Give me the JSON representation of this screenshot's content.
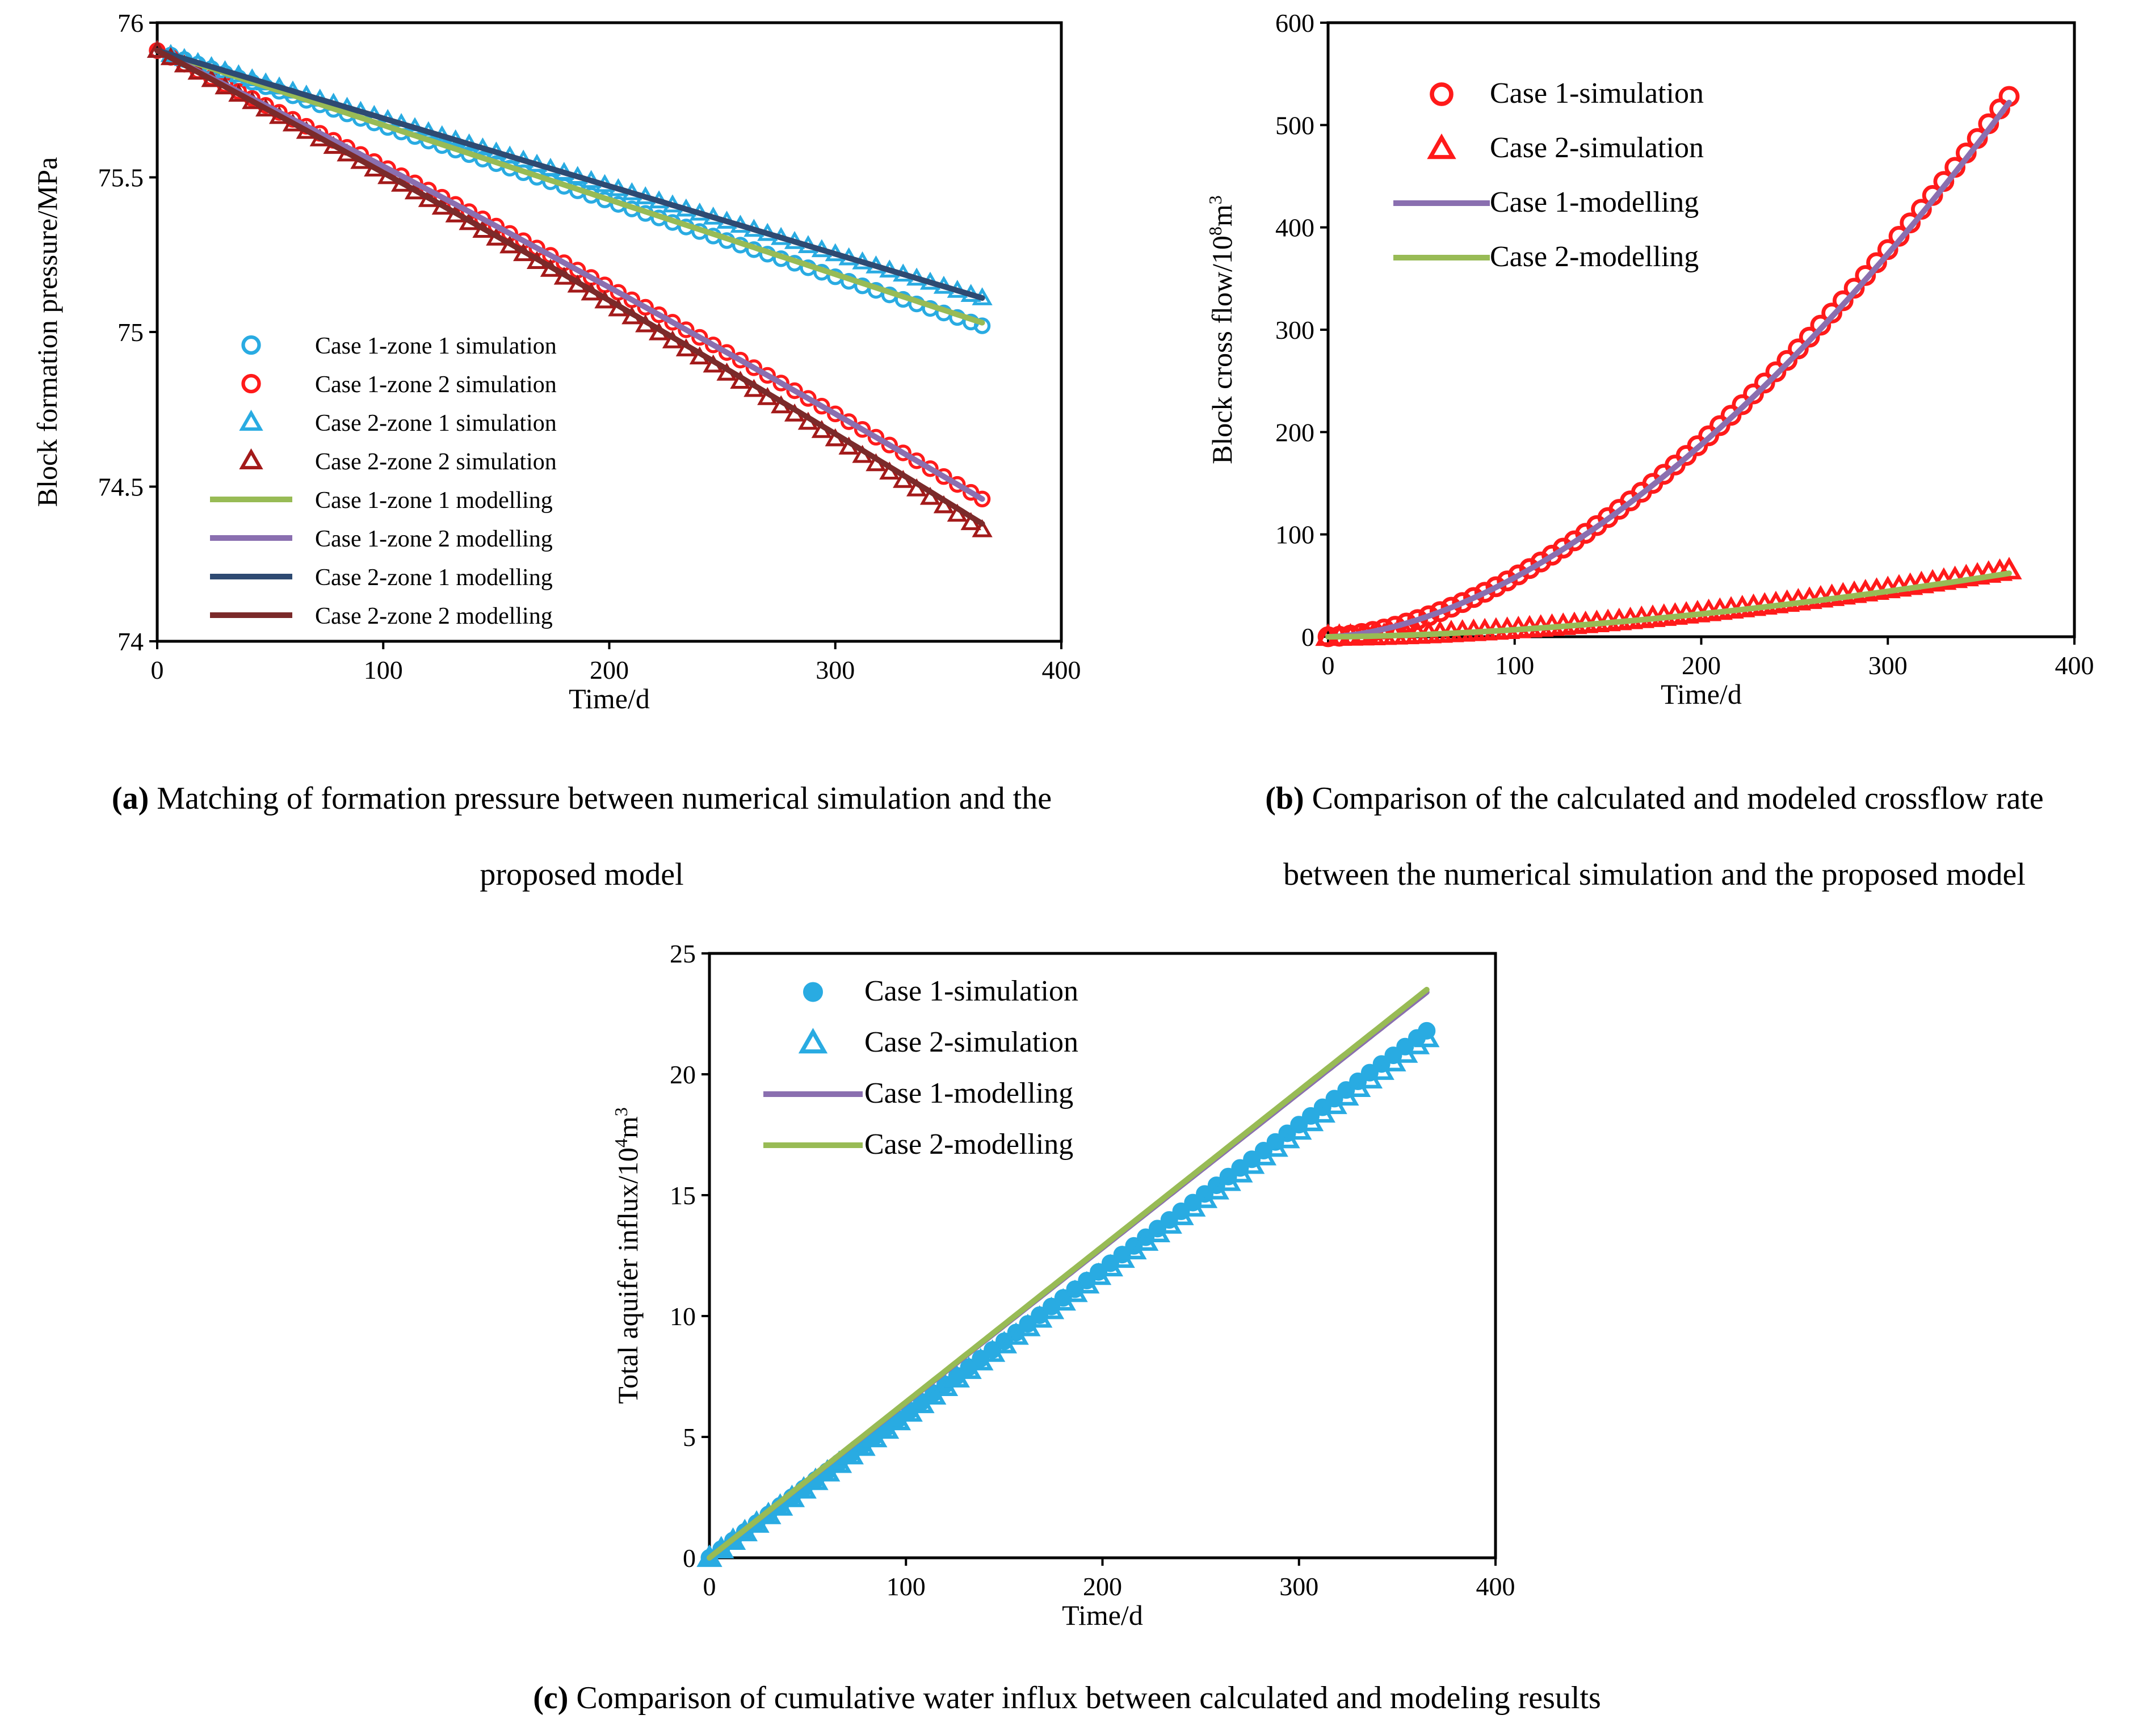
{
  "figure_captions": {
    "a": {
      "tag": "(a)",
      "line1": " Matching of formation pressure between numerical simulation and the",
      "line2": "proposed model"
    },
    "b": {
      "tag": "(b)",
      "line1": " Comparison of the calculated and modeled crossflow rate",
      "line2": "between the numerical simulation and the proposed model"
    },
    "c": {
      "tag": "(c)",
      "line1": " Comparison of cumulative water influx between calculated and modeling results"
    }
  },
  "colors": {
    "light_blue": "#29abe2",
    "red": "#ff1a1a",
    "dark_red": "#a31a1a",
    "olive_green": "#98bb55",
    "purple": "#8a6fb0",
    "navy": "#2e4a72",
    "maroon": "#7b2a2a",
    "case1_sim_c": "#29abe2"
  },
  "chart_data": [
    {
      "id": "a",
      "type": "line",
      "title": "",
      "xlabel": "Time/d",
      "ylabel": "Block formation pressure/MPa",
      "xlim": [
        0,
        400
      ],
      "ylim": [
        74,
        76
      ],
      "xticks": [
        "0",
        "100",
        "200",
        "300",
        "400"
      ],
      "yticks": [
        "74",
        "74.5",
        "75",
        "75.5",
        "76"
      ],
      "grid": false,
      "legend_position": "lower-left",
      "series": [
        {
          "name": "Case 1-zone 1 simulation",
          "marker": "circle-open",
          "color": "light_blue",
          "x_start": 0,
          "x_end": 365,
          "x_step": 6,
          "y_start": 75.91,
          "y_end": 75.02,
          "shape": "linear"
        },
        {
          "name": "Case 1-zone 2 simulation",
          "marker": "circle-open",
          "color": "red",
          "x_start": 0,
          "x_end": 365,
          "x_step": 6,
          "y_start": 75.91,
          "y_end": 74.46,
          "shape": "slight-convex"
        },
        {
          "name": "Case 2-zone 1 simulation",
          "marker": "triangle-open",
          "color": "light_blue",
          "x_start": 0,
          "x_end": 365,
          "x_step": 6,
          "y_start": 75.91,
          "y_end": 75.11,
          "shape": "linear"
        },
        {
          "name": "Case 2-zone 2 simulation",
          "marker": "triangle-open",
          "color": "dark_red",
          "x_start": 0,
          "x_end": 365,
          "x_step": 6,
          "y_start": 75.91,
          "y_end": 74.36,
          "shape": "slight-convex"
        },
        {
          "name": "Case 1-zone 1 modelling",
          "marker": "line",
          "color": "olive_green",
          "x_start": 0,
          "x_end": 365,
          "y_start": 75.91,
          "y_end": 75.03,
          "shape": "linear"
        },
        {
          "name": "Case 1-zone 2 modelling",
          "marker": "line",
          "color": "purple",
          "x_start": 0,
          "x_end": 365,
          "y_start": 75.91,
          "y_end": 74.46,
          "shape": "slight-convex"
        },
        {
          "name": "Case 2-zone 1 modelling",
          "marker": "line",
          "color": "navy",
          "x_start": 0,
          "x_end": 365,
          "y_start": 75.91,
          "y_end": 75.11,
          "shape": "linear"
        },
        {
          "name": "Case 2-zone 2 modelling",
          "marker": "line",
          "color": "maroon",
          "x_start": 0,
          "x_end": 365,
          "y_start": 75.91,
          "y_end": 74.38,
          "shape": "slight-convex"
        }
      ]
    },
    {
      "id": "b",
      "type": "line",
      "title": "",
      "xlabel": "Time/d",
      "ylabel": "Block cross flow/10",
      "ylabel_sup": "8",
      "ylabel_unit": "m",
      "ylabel_unit_sup": "3",
      "xlim": [
        0,
        400
      ],
      "ylim": [
        0,
        600
      ],
      "xticks": [
        "0",
        "100",
        "200",
        "300",
        "400"
      ],
      "yticks": [
        "0",
        "100",
        "200",
        "300",
        "400",
        "500",
        "600"
      ],
      "grid": false,
      "legend_position": "top-left",
      "series": [
        {
          "name": "Case 1-simulation",
          "marker": "circle-open",
          "color": "red",
          "x_start": 0,
          "x_end": 365,
          "x_step": 6,
          "y_end": 528,
          "power": 1.7
        },
        {
          "name": "Case 2-simulation",
          "marker": "triangle-open",
          "color": "red",
          "x_start": 0,
          "x_end": 365,
          "x_step": 6,
          "y_end": 65,
          "power": 1.7
        },
        {
          "name": "Case 1-modelling",
          "marker": "line",
          "color": "purple",
          "x_start": 0,
          "x_end": 365,
          "y_end": 522,
          "power": 1.7
        },
        {
          "name": "Case 2-modelling",
          "marker": "line",
          "color": "olive_green",
          "x_start": 0,
          "x_end": 365,
          "y_end": 62,
          "power": 1.7
        }
      ]
    },
    {
      "id": "c",
      "type": "line",
      "title": "",
      "xlabel": "Time/d",
      "ylabel": "Total aquifer influx/10",
      "ylabel_sup": "4",
      "ylabel_unit": "m",
      "ylabel_unit_sup": "3",
      "xlim": [
        0,
        400
      ],
      "ylim": [
        0,
        25
      ],
      "xticks": [
        "0",
        "100",
        "200",
        "300",
        "400"
      ],
      "yticks": [
        "0",
        "5",
        "10",
        "15",
        "20",
        "25"
      ],
      "grid": false,
      "legend_position": "top-left",
      "series": [
        {
          "name": "Case 1-simulation",
          "marker": "circle-filled",
          "color": "case1_sim_c",
          "x_start": 0,
          "x_end": 365,
          "x_step": 6,
          "y_start": 0,
          "y_end": 21.8
        },
        {
          "name": "Case 2-simulation",
          "marker": "triangle-open",
          "color": "light_blue",
          "x_start": 0,
          "x_end": 365,
          "x_step": 6,
          "y_start": 0,
          "y_end": 21.5
        },
        {
          "name": "Case 1-modelling",
          "marker": "line",
          "color": "purple",
          "x_start": 0,
          "x_end": 365,
          "y_start": 0,
          "y_end": 23.4
        },
        {
          "name": "Case 2-modelling",
          "marker": "line",
          "color": "olive_green",
          "x_start": 0,
          "x_end": 365,
          "y_start": 0,
          "y_end": 23.5
        }
      ]
    }
  ]
}
